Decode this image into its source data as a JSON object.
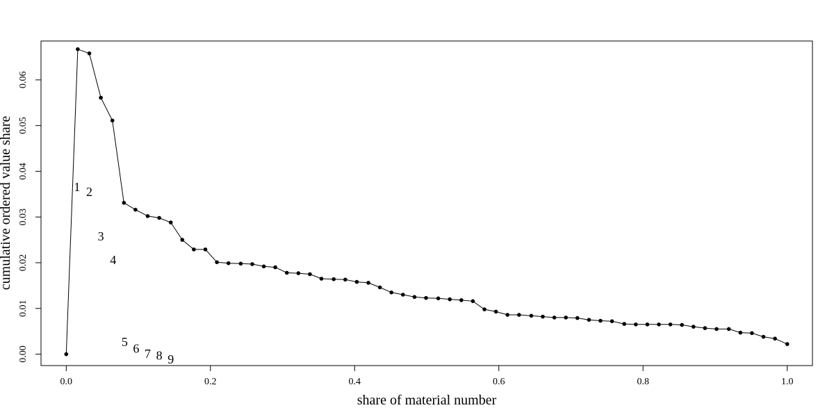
{
  "chart_data": {
    "type": "line",
    "title": "",
    "xlabel": "share of material number",
    "ylabel": "cumulative ordered value share",
    "xlim": [
      -0.035,
      1.035
    ],
    "ylim": [
      -0.0025,
      0.0685
    ],
    "xticks": [
      0.0,
      0.2,
      0.4,
      0.6,
      0.8,
      1.0
    ],
    "xtick_labels": [
      "0.0",
      "0.2",
      "0.4",
      "0.6",
      "0.8",
      "1.0"
    ],
    "yticks": [
      0.0,
      0.01,
      0.02,
      0.03,
      0.04,
      0.05,
      0.06
    ],
    "ytick_labels": [
      "0.00",
      "0.01",
      "0.02",
      "0.03",
      "0.04",
      "0.05",
      "0.06"
    ],
    "grid": false,
    "series": [
      {
        "x": [
          0.0,
          0.016,
          0.032,
          0.048,
          0.064,
          0.08,
          0.096,
          0.113,
          0.129,
          0.145,
          0.161,
          0.177,
          0.193,
          0.209,
          0.225,
          0.242,
          0.258,
          0.274,
          0.29,
          0.306,
          0.322,
          0.338,
          0.354,
          0.371,
          0.387,
          0.403,
          0.419,
          0.435,
          0.451,
          0.467,
          0.483,
          0.499,
          0.516,
          0.532,
          0.548,
          0.564,
          0.58,
          0.596,
          0.612,
          0.628,
          0.645,
          0.661,
          0.677,
          0.693,
          0.709,
          0.725,
          0.741,
          0.757,
          0.774,
          0.79,
          0.806,
          0.822,
          0.838,
          0.854,
          0.87,
          0.886,
          0.902,
          0.919,
          0.935,
          0.951,
          0.967,
          0.983,
          1.0
        ],
        "y": [
          0.0,
          0.0667,
          0.0658,
          0.0561,
          0.0511,
          0.0331,
          0.0316,
          0.0302,
          0.0298,
          0.0288,
          0.025,
          0.0229,
          0.0229,
          0.0201,
          0.0199,
          0.0198,
          0.0197,
          0.0192,
          0.019,
          0.0178,
          0.0177,
          0.0175,
          0.0165,
          0.0164,
          0.0163,
          0.0158,
          0.0156,
          0.0146,
          0.0135,
          0.013,
          0.0125,
          0.0123,
          0.0122,
          0.012,
          0.0118,
          0.0116,
          0.0098,
          0.0093,
          0.0086,
          0.0086,
          0.0084,
          0.0082,
          0.008,
          0.008,
          0.0079,
          0.0075,
          0.0073,
          0.0072,
          0.0066,
          0.0065,
          0.0065,
          0.0065,
          0.0065,
          0.0064,
          0.006,
          0.0057,
          0.0055,
          0.0055,
          0.0047,
          0.0046,
          0.0038,
          0.0034,
          0.0022
        ],
        "color": "#000000"
      }
    ],
    "annotations": [
      {
        "text": "1",
        "x": 0.015,
        "y": 0.0366
      },
      {
        "text": "2",
        "x": 0.032,
        "y": 0.0355
      },
      {
        "text": "3",
        "x": 0.048,
        "y": 0.0258
      },
      {
        "text": "4",
        "x": 0.065,
        "y": 0.0206
      },
      {
        "text": "5",
        "x": 0.081,
        "y": 0.0027
      },
      {
        "text": "6",
        "x": 0.097,
        "y": 0.0012
      },
      {
        "text": "7",
        "x": 0.113,
        "y": 0.0001
      },
      {
        "text": "8",
        "x": 0.129,
        "y": -0.0003
      },
      {
        "text": "9",
        "x": 0.145,
        "y": -0.0011
      }
    ]
  }
}
